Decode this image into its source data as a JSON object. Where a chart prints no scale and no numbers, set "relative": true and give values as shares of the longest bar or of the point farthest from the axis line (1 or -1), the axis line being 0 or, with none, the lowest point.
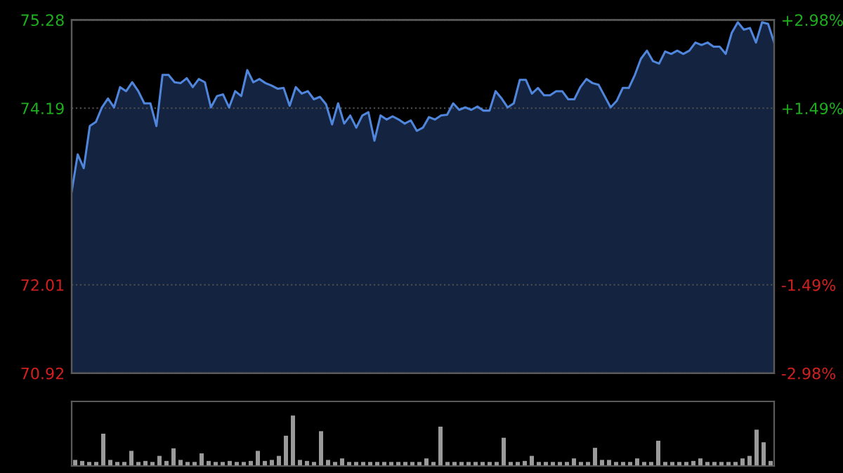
{
  "chart_data": [
    {
      "type": "area",
      "color": "#4f86dc",
      "categories": [
        null,
        null,
        null,
        null,
        null,
        null,
        null,
        null,
        null,
        null,
        null,
        null,
        null,
        null,
        null,
        null,
        null,
        null,
        null,
        null,
        null,
        null,
        null,
        null,
        null,
        null,
        null,
        null,
        null,
        null,
        null,
        null,
        null,
        null,
        null,
        null,
        null,
        null,
        null,
        null,
        null,
        null,
        null,
        null,
        null,
        null,
        null,
        null,
        null,
        null,
        null,
        null,
        null,
        null,
        null,
        null,
        null,
        null,
        null,
        null,
        null,
        null,
        null,
        null,
        null,
        null,
        null,
        null,
        null,
        null,
        null,
        null,
        null,
        null,
        null,
        null,
        null,
        null,
        null,
        null,
        null,
        null,
        null,
        null,
        null,
        null,
        null,
        null,
        null,
        null,
        null,
        null,
        null,
        null,
        null,
        null,
        null,
        null,
        null,
        null,
        null,
        null,
        null,
        null,
        null,
        null,
        null,
        null,
        null,
        null,
        null,
        null,
        null,
        null,
        null,
        null,
        null
      ],
      "values": [
        73.16,
        73.62,
        73.45,
        73.97,
        74.02,
        74.2,
        74.31,
        74.2,
        74.45,
        74.4,
        74.51,
        74.4,
        74.25,
        74.25,
        73.97,
        74.6,
        74.6,
        74.51,
        74.5,
        74.56,
        74.45,
        74.55,
        74.51,
        74.2,
        74.34,
        74.36,
        74.2,
        74.4,
        74.34,
        74.66,
        74.51,
        74.55,
        74.5,
        74.47,
        74.43,
        74.44,
        74.22,
        74.45,
        74.37,
        74.4,
        74.3,
        74.33,
        74.24,
        73.99,
        74.25,
        74.0,
        74.1,
        73.95,
        74.1,
        74.14,
        73.79,
        74.1,
        74.05,
        74.09,
        74.05,
        74.0,
        74.04,
        73.91,
        73.95,
        74.08,
        74.05,
        74.1,
        74.11,
        74.25,
        74.17,
        74.2,
        74.17,
        74.21,
        74.16,
        74.16,
        74.4,
        74.31,
        74.2,
        74.25,
        74.54,
        74.54,
        74.37,
        74.44,
        74.35,
        74.35,
        74.4,
        74.4,
        74.3,
        74.3,
        74.45,
        74.55,
        74.5,
        74.48,
        74.34,
        74.2,
        74.28,
        74.44,
        74.44,
        74.6,
        74.8,
        74.9,
        74.77,
        74.74,
        74.89,
        74.86,
        74.9,
        74.86,
        74.9,
        75.0,
        74.97,
        75.0,
        74.95,
        74.95,
        74.86,
        75.12,
        75.25,
        75.16,
        75.18,
        75.0,
        75.25,
        75.23,
        75.0
      ],
      "ylim": [
        70.92,
        75.28
      ],
      "yticks": [
        70.92,
        72.01,
        74.19,
        75.28
      ],
      "y2lim": [
        -2.98,
        2.98
      ],
      "y2ticks": [
        {
          "value": -2.98,
          "label": "-2.98%"
        },
        {
          "value": -1.49,
          "label": "-1.49%"
        },
        {
          "value": 1.49,
          "label": "+1.49%"
        },
        {
          "value": 2.98,
          "label": "+2.98%"
        }
      ],
      "grid": "y"
    },
    {
      "type": "bar",
      "relative": true,
      "color": "#9a9a9a",
      "categories": [
        null,
        null,
        null,
        null,
        null,
        null,
        null,
        null,
        null,
        null,
        null,
        null,
        null,
        null,
        null,
        null,
        null,
        null,
        null,
        null,
        null,
        null,
        null,
        null,
        null,
        null,
        null,
        null,
        null,
        null,
        null,
        null,
        null,
        null,
        null,
        null,
        null,
        null,
        null,
        null,
        null,
        null,
        null,
        null,
        null,
        null,
        null,
        null,
        null,
        null,
        null,
        null,
        null,
        null,
        null,
        null,
        null,
        null,
        null,
        null,
        null,
        null,
        null,
        null,
        null,
        null,
        null,
        null,
        null,
        null,
        null,
        null,
        null,
        null,
        null,
        null,
        null,
        null,
        null,
        null,
        null,
        null,
        null,
        null,
        null,
        null,
        null,
        null,
        null,
        null,
        null,
        null,
        null,
        null,
        null,
        null,
        null,
        null,
        null,
        null
      ],
      "values": [
        0.12,
        0.1,
        0.08,
        0.08,
        0.64,
        0.12,
        0.08,
        0.08,
        0.3,
        0.08,
        0.1,
        0.08,
        0.2,
        0.1,
        0.35,
        0.12,
        0.08,
        0.08,
        0.25,
        0.1,
        0.08,
        0.08,
        0.1,
        0.08,
        0.08,
        0.1,
        0.3,
        0.1,
        0.12,
        0.2,
        0.6,
        1.0,
        0.12,
        0.1,
        0.08,
        0.69,
        0.12,
        0.08,
        0.15,
        0.08,
        0.08,
        0.08,
        0.08,
        0.08,
        0.08,
        0.08,
        0.08,
        0.08,
        0.08,
        0.08,
        0.15,
        0.08,
        0.78,
        0.08,
        0.08,
        0.08,
        0.08,
        0.08,
        0.08,
        0.08,
        0.08,
        0.56,
        0.08,
        0.08,
        0.1,
        0.2,
        0.08,
        0.08,
        0.08,
        0.08,
        0.08,
        0.15,
        0.08,
        0.08,
        0.36,
        0.12,
        0.12,
        0.08,
        0.08,
        0.08,
        0.15,
        0.08,
        0.08,
        0.5,
        0.08,
        0.08,
        0.08,
        0.08,
        0.1,
        0.15,
        0.08,
        0.08,
        0.08,
        0.08,
        0.08,
        0.15,
        0.2,
        0.72,
        0.47,
        0.1
      ]
    }
  ]
}
